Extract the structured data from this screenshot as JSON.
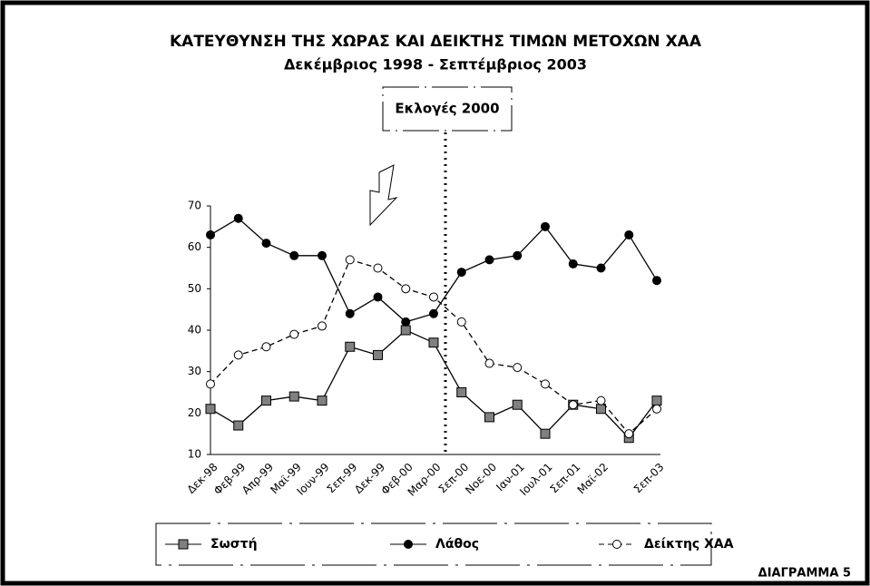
{
  "chart_data": {
    "type": "line",
    "title": "ΚΑΤΕΥΘΥΝΣΗ ΤΗΣ ΧΩΡΑΣ ΚΑΙ ΔΕΙΚΤΗΣ ΤΙΜΩΝ ΜΕΤΟΧΩΝ ΧΑΑ",
    "subtitle": "Δεκέμβριος 1998 - Σεπτέμβριος 2003",
    "annotation": "Εκλογές 2000",
    "caption": "ΔΙΑΓΡΑΜΜΑ 5",
    "categories": [
      "Δεκ-98",
      "Φεβ-99",
      "Απρ-99",
      "Μαϊ-99",
      "Ιουν-99",
      "Σεπ-99",
      "Δεκ-99",
      "Φεβ-00",
      "Μαρ-00",
      "Σεπ-00",
      "Νοε-00",
      "Ιαν-01",
      "Ιουλ-01",
      "Σεπ-01",
      "Μαϊ-02",
      null,
      "Σεπ-03"
    ],
    "series": [
      {
        "name": "Σωστή",
        "color": "#808080",
        "marker": "square",
        "dashed": false,
        "values": [
          21,
          17,
          23,
          24,
          23,
          36,
          34,
          40,
          37,
          25,
          19,
          22,
          15,
          22,
          21,
          14,
          23
        ]
      },
      {
        "name": "Λάθος",
        "color": "#000000",
        "marker": "circle",
        "dashed": false,
        "values": [
          63,
          67,
          61,
          58,
          58,
          44,
          48,
          42,
          44,
          54,
          57,
          58,
          65,
          56,
          55,
          63,
          52
        ]
      },
      {
        "name": "Δείκτης ΧΑΑ",
        "color": "#ffffff",
        "marker": "circle",
        "dashed": true,
        "values": [
          27,
          34,
          36,
          39,
          41,
          57,
          55,
          50,
          48,
          42,
          32,
          31,
          27,
          22,
          23,
          15,
          21
        ]
      }
    ],
    "ylim": [
      10,
      70
    ],
    "yticks": [
      10,
      20,
      30,
      40,
      50,
      60,
      70
    ],
    "grid": false
  }
}
